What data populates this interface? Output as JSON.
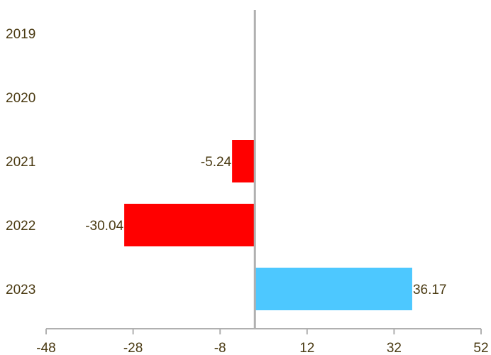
{
  "chart_data": {
    "type": "bar",
    "orientation": "horizontal",
    "title": "",
    "xlabel": "",
    "ylabel": "",
    "categories": [
      "2019",
      "2020",
      "2021",
      "2022",
      "2023"
    ],
    "values": [
      null,
      null,
      -5.24,
      -30.04,
      36.17
    ],
    "value_labels": [
      "",
      "",
      "-5.24",
      "-30.04",
      "36.17"
    ],
    "xlim": [
      -48,
      52
    ],
    "xticks": [
      "-48",
      "-28",
      "-8",
      "12",
      "32",
      "52"
    ],
    "grid": false,
    "legend": "none",
    "colors": {
      "negative": "#ff0000",
      "positive": "#4dc8ff",
      "axis": "#b0b0b0",
      "zero_line": "#b0b0b0",
      "text": "#4a3a12"
    }
  }
}
